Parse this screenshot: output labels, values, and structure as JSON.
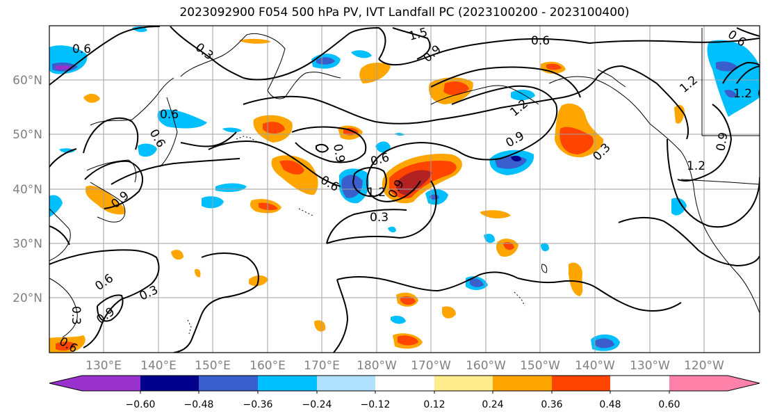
{
  "title": "2023092900 F054 500 hPa PV, IVT Landfall PC (2023100200 - 2023100400)",
  "lat_labels": [
    "60°N",
    "50°N",
    "40°N",
    "30°N",
    "20°N"
  ],
  "lon_labels": [
    "130°E",
    "140°E",
    "150°E",
    "160°E",
    "170°E",
    "180°W",
    "170°W",
    "160°W",
    "150°W",
    "140°W",
    "130°W",
    "120°W"
  ],
  "colorbar": {
    "colors": [
      "#9932cc",
      "#00008b",
      "#3a5fcd",
      "#00bfff",
      "#b0e2ff",
      "#ffffff",
      "#ffec8b",
      "#ffa500",
      "#ff4500",
      "#b22222",
      "#ff82ab"
    ],
    "tick_labels": [
      "−0.60",
      "−0.48",
      "−0.36",
      "−0.24",
      "−0.12",
      "0.12",
      "0.24",
      "0.36",
      "0.48",
      "0.60"
    ]
  },
  "contour_labels": [
    "0.6",
    "0.3",
    "1.5",
    "0.9",
    "0.6",
    "0.6",
    "1.2",
    "1.2",
    "0.9",
    "0.9",
    "0.6",
    "0.6",
    "0.6",
    "0.9",
    "0.3",
    "1.2",
    "1.2",
    "0.9",
    "0.6",
    "0.3",
    "0.3",
    "0.6",
    "0.3",
    "0.9",
    "0.3",
    "0.6",
    "1.2",
    "0.9"
  ],
  "fill_colors": {
    "orange": "#ffa500",
    "red_orange": "#ff4500",
    "dark_red": "#b22222",
    "light_yellow": "#ffec8b",
    "sky_blue": "#00bfff",
    "blue": "#3a5fcd",
    "navy": "#00008b",
    "light_blue": "#b0e2ff"
  }
}
